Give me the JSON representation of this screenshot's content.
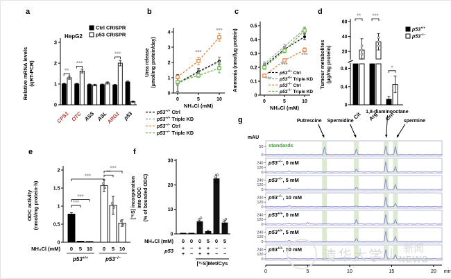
{
  "watermark": {
    "university": "清华大学",
    "divider": "|",
    "news_cn": "新闻",
    "news_en": "NEWS"
  },
  "chart_data": [
    {
      "panel": "a",
      "letter": "a",
      "type": "bar",
      "title": "HepG2",
      "ylabel_lines": [
        "Relative mRNA levels",
        "(qRT-PCR)"
      ],
      "categories": [
        "CPS1",
        "OTC",
        "ASS",
        "ASL",
        "ARG1",
        "p53"
      ],
      "category_colors": [
        "#b03a30",
        "#b03a30",
        "#000000",
        "#000000",
        "#b03a30",
        "#000000"
      ],
      "series": [
        {
          "name": "Ctrl CRISPR",
          "fill": "#000000",
          "values": [
            1.0,
            1.0,
            0.97,
            0.97,
            0.95,
            1.1
          ],
          "err": [
            0.03,
            0.03,
            0.03,
            0.03,
            0.03,
            0.04
          ]
        },
        {
          "name": "p53 CRISPR",
          "fill": "#ffffff",
          "values": [
            1.3,
            1.62,
            0.95,
            1.05,
            2.0,
            0.15
          ],
          "err": [
            0.07,
            0.09,
            0.04,
            0.05,
            0.13,
            0.03
          ]
        }
      ],
      "legend": [
        {
          "label": "Ctrl CRISPR",
          "fill": "#000000"
        },
        {
          "label": "p53 CRISPR",
          "fill": "#ffffff"
        }
      ],
      "ylim": [
        0,
        3
      ],
      "yticks": [
        0,
        1,
        2,
        3
      ],
      "sig": [
        {
          "cat": 0,
          "y": 1.5,
          "text": "**"
        },
        {
          "cat": 1,
          "y": 1.85,
          "text": "***"
        },
        {
          "cat": 4,
          "y": 2.3,
          "text": "***"
        }
      ]
    },
    {
      "panel": "b",
      "letter": "b",
      "type": "line",
      "ylabel_lines": [
        "Urea release",
        "(μmol/mg protein/day)"
      ],
      "xlabel": "NH₄Cl (mM)",
      "x": [
        0,
        5,
        10
      ],
      "ylim": [
        0,
        4
      ],
      "yticks": [
        0,
        1,
        2,
        3,
        4
      ],
      "series": [
        {
          "base": "p53",
          "sup": "+/+",
          "rest": " Ctrl",
          "color": "#000000",
          "marker": "circle-filled",
          "values": [
            0.65,
            1.4,
            2.1
          ],
          "err": [
            0.55,
            0.2,
            0.25
          ]
        },
        {
          "base": "p53",
          "sup": "+/+",
          "rest": " Triple KD",
          "color": "#999999",
          "marker": "triangle-filled",
          "values": [
            0.6,
            1.35,
            2.05
          ],
          "err": [
            0.12,
            0.15,
            0.3
          ]
        },
        {
          "base": "p53",
          "sup": "−/−",
          "rest": " Ctrl",
          "color": "#e07b30",
          "marker": "square-open",
          "values": [
            1.05,
            2.1,
            3.65
          ],
          "err": [
            0.12,
            0.25,
            0.25
          ]
        },
        {
          "base": "p53",
          "sup": "−/−",
          "rest": " Triple KD",
          "color": "#5fae33",
          "marker": "square-open",
          "values": [
            0.72,
            1.15,
            1.62
          ],
          "err": [
            0.1,
            0.12,
            0.3
          ]
        }
      ],
      "sig": [
        {
          "x": 5,
          "y": 2.55,
          "text": "***"
        },
        {
          "x": 10,
          "y": 3.97,
          "text": "***"
        }
      ]
    },
    {
      "panel": "c",
      "letter": "c",
      "type": "line",
      "ylabel_lines": [
        "Ammonia (nmol/μg protein)"
      ],
      "xlabel": "NH₄Cl (mM)",
      "x": [
        0,
        5,
        10
      ],
      "ylim": [
        0,
        0.5
      ],
      "yticks": [
        0,
        0.1,
        0.2,
        0.3,
        0.4,
        0.5
      ],
      "series": [
        {
          "base": "p53",
          "sup": "+/+",
          "rest": " Ctrl",
          "color": "#000000",
          "marker": "circle-filled",
          "values": [
            0.21,
            0.33,
            0.42
          ],
          "err": [
            0.015,
            0.02,
            0.02
          ]
        },
        {
          "base": "p53",
          "sup": "+/+",
          "rest": " Triple KD",
          "color": "#999999",
          "marker": "triangle-filled",
          "values": [
            0.225,
            0.35,
            0.475
          ],
          "err": [
            0.015,
            0.015,
            0.015
          ]
        },
        {
          "base": "p53",
          "sup": "−/−",
          "rest": " Ctrl",
          "color": "#e07b30",
          "marker": "square-open",
          "values": [
            0.14,
            0.25,
            0.325
          ],
          "err": [
            0.012,
            0.012,
            0.015
          ]
        },
        {
          "base": "p53",
          "sup": "−/−",
          "rest": " Triple KD",
          "color": "#5fae33",
          "marker": "square-open",
          "values": [
            0.2,
            0.32,
            0.465
          ],
          "err": [
            0.015,
            0.015,
            0.02
          ]
        }
      ],
      "sig": [
        {
          "x": 1,
          "y": 0.105,
          "text": "***"
        },
        {
          "x": 5,
          "y": 0.205,
          "text": "***"
        },
        {
          "x": 10,
          "y": 0.275,
          "text": "***"
        }
      ]
    },
    {
      "panel": "d",
      "letter": "d",
      "type": "bar-broken",
      "ylabel_lines": [
        "Tumour metabolites",
        "(μg/mg protein)"
      ],
      "categories": [
        "Cit",
        "Arg",
        "Orn"
      ],
      "top": {
        "domain": [
          10,
          60
        ],
        "ticks": [
          20,
          40,
          60
        ]
      },
      "bottom": {
        "domain": [
          0,
          0.9
        ],
        "ticks": [
          0,
          0.4,
          0.8
        ]
      },
      "series": [
        {
          "base": "p53",
          "sup": "+/+",
          "fill": "#000000",
          "values": [
            5,
            3,
            0.12
          ],
          "err": [
            0,
            0,
            0.06
          ]
        },
        {
          "base": "p53",
          "sup": "−/−",
          "fill": "#ffffff",
          "values": [
            22,
            33,
            0.45
          ],
          "err": [
            15,
            11,
            0.18
          ]
        }
      ],
      "sig": [
        {
          "cat": 0,
          "text": "**"
        },
        {
          "cat": 1,
          "text": "***"
        },
        {
          "cat": 2,
          "text": "*"
        }
      ]
    },
    {
      "panel": "e",
      "letter": "e",
      "type": "bar",
      "ylabel_lines": [
        "ODC activity",
        "(nmol/mg protein·h)"
      ],
      "row_label": "NH₄Cl (mM)",
      "x_values": [
        "0",
        "5",
        "10",
        "0",
        "5",
        "10"
      ],
      "groups": [
        {
          "base": "p53",
          "sup": "+/+",
          "fill": "#000000"
        },
        {
          "base": "p53",
          "sup": "−/−",
          "fill": "#ffffff"
        }
      ],
      "values": [
        0.78,
        0.03,
        0.02,
        1.57,
        1.02,
        0.53
      ],
      "err": [
        0.04,
        0.01,
        0.01,
        0.16,
        0.25,
        0.09
      ],
      "ylim": [
        0,
        2
      ],
      "yticks": [
        0,
        0.5,
        1,
        1.5,
        2
      ],
      "sig": [
        {
          "a": 0,
          "b": 1,
          "y": 1.02,
          "text": "***"
        },
        {
          "a": 0,
          "b": 2,
          "y": 1.18,
          "text": "***"
        },
        {
          "a": 0,
          "b": 3,
          "y": 1.75,
          "text": "***"
        },
        {
          "a": 3,
          "b": 4,
          "y": 1.86,
          "text": "**"
        },
        {
          "a": 3,
          "b": 5,
          "y": 1.97,
          "text": "***"
        }
      ]
    },
    {
      "panel": "f",
      "letter": "f",
      "type": "bar",
      "ylabel_lines": [
        "[³⁵S] incorporation",
        "into ODC",
        "(% of bounded ODC)"
      ],
      "rows": {
        "row1_label": "NH₄Cl (mM)",
        "row1_values": [
          "0",
          "0",
          "0",
          "5",
          "0",
          "5"
        ],
        "row2_label": "p53",
        "row2_values": [
          "+/+",
          "−/−",
          "+/+",
          "+/+",
          "−/−",
          "−/−"
        ]
      },
      "bracket": {
        "label": "[³⁵S]Met/Cys",
        "from": 2,
        "to": 5
      },
      "values": [
        0.3,
        0.3,
        5,
        1,
        22.5,
        4.5
      ],
      "err": [
        0,
        0,
        1.2,
        0.4,
        1.6,
        0.9
      ],
      "ylim": [
        0,
        30
      ],
      "yticks": [
        0,
        10,
        20,
        30
      ]
    },
    {
      "panel": "g",
      "letter": "g",
      "type": "chromatogram",
      "yunit": "mAU",
      "annotations": [
        {
          "label": "Putrescine",
          "x": 7
        },
        {
          "label": "Spermidine",
          "x": 10.8
        },
        {
          "label": "1,8-diaminooctane",
          "x": 14.35
        },
        {
          "label": "spermine",
          "x": 15.45
        }
      ],
      "bands": [
        {
          "x": 7,
          "w": 7
        },
        {
          "x": 10.8,
          "w": 7
        },
        {
          "x": 14.35,
          "w": 7
        },
        {
          "x": 15.45,
          "w": 7
        }
      ],
      "x_axis": {
        "ticks": [
          0,
          5,
          10,
          15,
          20
        ],
        "max": 21,
        "label": "min"
      },
      "traces": [
        {
          "label": "standards",
          "color": "#3f9b35",
          "yticks": [
            50,
            0
          ],
          "peaks": [
            [
              7,
              0.75
            ],
            [
              10.8,
              0.55
            ],
            [
              14.3,
              0.8
            ],
            [
              15.45,
              0.78
            ]
          ]
        },
        {
          "base": "p53",
          "sup": "−/−",
          "rest": ", 0 mM",
          "yticks": [
            240,
            120,
            0
          ],
          "peaks": [
            [
              2.8,
              0.12
            ],
            [
              5,
              0.05
            ],
            [
              10.8,
              0.3
            ],
            [
              14.3,
              0.95
            ],
            [
              15.45,
              0.5
            ]
          ]
        },
        {
          "base": "p53",
          "sup": "−/−",
          "rest": ", 5 mM",
          "yticks": [
            240,
            120,
            0
          ],
          "peaks": [
            [
              2.8,
              0.13
            ],
            [
              5,
              0.05
            ],
            [
              10.8,
              0.22
            ],
            [
              14.3,
              0.97
            ],
            [
              15.45,
              0.45
            ]
          ]
        },
        {
          "base": "p53",
          "sup": "−/−",
          "rest": ", 10 mM",
          "yticks": [
            240,
            120,
            0
          ],
          "peaks": [
            [
              2.8,
              0.12
            ],
            [
              7,
              0.04
            ],
            [
              10.8,
              0.1
            ],
            [
              12,
              0.05
            ],
            [
              14.3,
              0.9
            ],
            [
              15.45,
              0.32
            ]
          ]
        },
        {
          "base": "p53",
          "sup": "+/+",
          "rest": ", 0 mM",
          "yticks": [
            240,
            120,
            0
          ],
          "peaks": [
            [
              2.8,
              0.1
            ],
            [
              5,
              0.16
            ],
            [
              7,
              0.05
            ],
            [
              10.8,
              0.45
            ],
            [
              14.3,
              0.9
            ],
            [
              15.45,
              0.42
            ]
          ]
        },
        {
          "base": "p53",
          "sup": "+/+",
          "rest": ", 5 mM",
          "yticks": [
            240,
            120,
            0
          ],
          "peaks": [
            [
              2.8,
              0.1
            ],
            [
              5,
              0.1
            ],
            [
              10.8,
              0.3
            ],
            [
              14.3,
              0.95
            ],
            [
              15.45,
              0.45
            ]
          ]
        },
        {
          "base": "p53",
          "sup": "+/+",
          "rest": ", 10 mM",
          "yticks": [
            240,
            120,
            0
          ],
          "peaks": [
            [
              2.8,
              0.1
            ],
            [
              10.8,
              0.22
            ],
            [
              12,
              0.06
            ],
            [
              14.3,
              0.85
            ],
            [
              15.45,
              0.38
            ]
          ]
        }
      ]
    }
  ]
}
